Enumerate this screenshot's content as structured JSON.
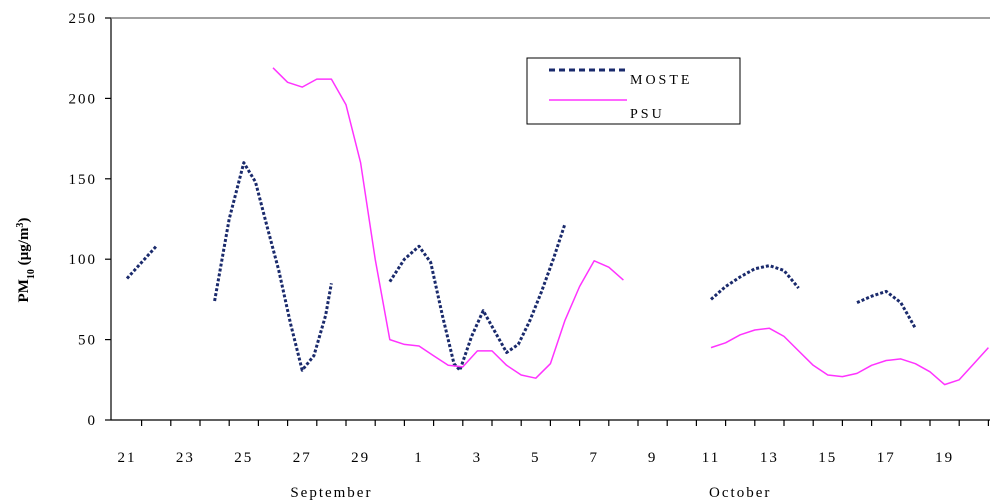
{
  "chart_data": {
    "type": "line",
    "title": "",
    "xlabel": "",
    "ylabel_main": "PM",
    "ylabel_sub": "10",
    "ylabel_units_prefix": " (µg/m",
    "ylabel_units_sup": "3",
    "ylabel_units_suffix": ")",
    "ylim": [
      0,
      250
    ],
    "yticks": [
      0,
      50,
      100,
      150,
      200,
      250
    ],
    "xlim": [
      0,
      29.5
    ],
    "xticks": [
      {
        "pos": 0,
        "label": "21"
      },
      {
        "pos": 2,
        "label": "23"
      },
      {
        "pos": 4,
        "label": "25"
      },
      {
        "pos": 6,
        "label": "27"
      },
      {
        "pos": 8,
        "label": "29"
      },
      {
        "pos": 10,
        "label": "1"
      },
      {
        "pos": 12,
        "label": "3"
      },
      {
        "pos": 14,
        "label": "5"
      },
      {
        "pos": 16,
        "label": "7"
      },
      {
        "pos": 18,
        "label": "9"
      },
      {
        "pos": 20,
        "label": "11"
      },
      {
        "pos": 22,
        "label": "13"
      },
      {
        "pos": 24,
        "label": "15"
      },
      {
        "pos": 26,
        "label": "17"
      },
      {
        "pos": 28,
        "label": "19"
      }
    ],
    "month_labels": [
      {
        "pos": 7,
        "label": "September"
      },
      {
        "pos": 21,
        "label": "October"
      }
    ],
    "grid": false,
    "legend_position": "top-right",
    "series": [
      {
        "name": "MOSTE",
        "color": "#1a2a6c",
        "style": "dashed",
        "segments": [
          [
            [
              0,
              88
            ],
            [
              0.5,
              98
            ],
            [
              1,
              108
            ]
          ],
          [
            [
              3,
              74
            ],
            [
              3.5,
              125
            ],
            [
              4,
              160
            ],
            [
              4.4,
              148
            ],
            [
              4.8,
              120
            ],
            [
              5.2,
              93
            ],
            [
              5.6,
              60
            ],
            [
              6,
              31
            ],
            [
              6.4,
              40
            ],
            [
              6.8,
              65
            ],
            [
              7,
              85
            ]
          ],
          [
            [
              9,
              86
            ],
            [
              9.5,
              100
            ],
            [
              10,
              108
            ],
            [
              10.4,
              98
            ],
            [
              10.8,
              65
            ],
            [
              11.2,
              35
            ],
            [
              11.4,
              31
            ],
            [
              11.8,
              52
            ],
            [
              12.2,
              68
            ],
            [
              12.6,
              55
            ],
            [
              13,
              42
            ],
            [
              13.4,
              47
            ],
            [
              13.8,
              62
            ],
            [
              14.2,
              80
            ],
            [
              14.6,
              100
            ],
            [
              15,
              122
            ]
          ],
          [
            [
              20,
              75
            ],
            [
              20.5,
              83
            ],
            [
              21,
              89
            ],
            [
              21.5,
              94
            ],
            [
              22,
              96
            ],
            [
              22.5,
              93
            ],
            [
              23,
              82
            ]
          ],
          [
            [
              25,
              73
            ],
            [
              25.5,
              77
            ],
            [
              26,
              80
            ],
            [
              26.5,
              73
            ],
            [
              27,
              57
            ]
          ]
        ]
      },
      {
        "name": "PSU",
        "color": "#ff33ff",
        "style": "solid",
        "segments": [
          [
            [
              5,
              219
            ],
            [
              5.5,
              210
            ],
            [
              6,
              207
            ],
            [
              6.5,
              212
            ],
            [
              7,
              212
            ],
            [
              7.5,
              196
            ],
            [
              8,
              160
            ],
            [
              8.5,
              100
            ],
            [
              9,
              50
            ],
            [
              9.5,
              47
            ],
            [
              10,
              46
            ],
            [
              10.5,
              40
            ],
            [
              11,
              34
            ],
            [
              11.5,
              33
            ],
            [
              12,
              43
            ],
            [
              12.5,
              43
            ],
            [
              13,
              34
            ],
            [
              13.5,
              28
            ],
            [
              14,
              26
            ],
            [
              14.5,
              35
            ],
            [
              15,
              62
            ],
            [
              15.5,
              83
            ],
            [
              16,
              99
            ],
            [
              16.5,
              95
            ],
            [
              17,
              87
            ]
          ],
          [
            [
              20,
              45
            ],
            [
              20.5,
              48
            ],
            [
              21,
              53
            ],
            [
              21.5,
              56
            ],
            [
              22,
              57
            ],
            [
              22.5,
              52
            ],
            [
              23,
              43
            ],
            [
              23.5,
              34
            ],
            [
              24,
              28
            ],
            [
              24.5,
              27
            ],
            [
              25,
              29
            ],
            [
              25.5,
              34
            ],
            [
              26,
              37
            ],
            [
              26.5,
              38
            ],
            [
              27,
              35
            ],
            [
              27.5,
              30
            ],
            [
              28,
              22
            ],
            [
              28.5,
              25
            ],
            [
              29,
              35
            ],
            [
              29.5,
              45
            ]
          ]
        ]
      }
    ]
  }
}
